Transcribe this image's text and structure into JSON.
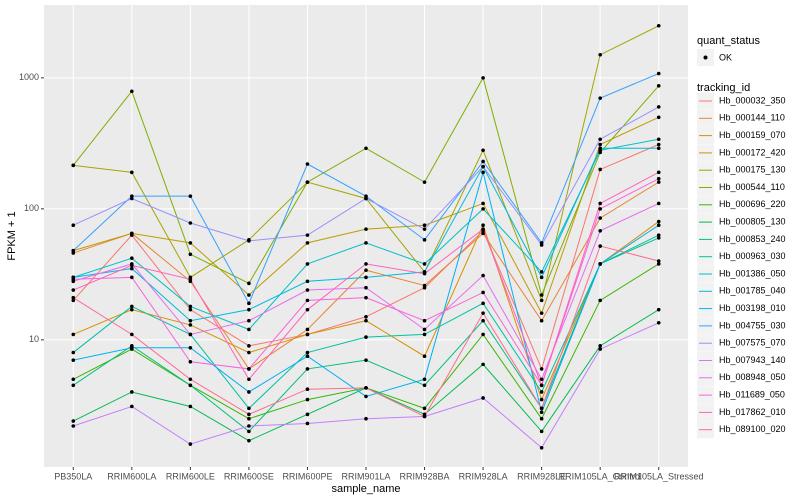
{
  "chart_data": {
    "type": "line",
    "log_y": true,
    "grid": true,
    "x_label": "sample_name",
    "y_label": "FPKM + 1",
    "point_legend_title": "quant_status",
    "point_legend_entry": "OK",
    "legend_title": "tracking_id",
    "categories": [
      "PB350LA",
      "RRIM600LA",
      "RRIM600LE",
      "RRIM600SE",
      "RRIM600PE",
      "RRIM901LA",
      "RRIM928BA",
      "RRIM928LA",
      "RRIM928LE",
      "RRIM105LA_Control",
      "RRIM105LA_Stressed"
    ],
    "ylim": [
      1.07,
      3600
    ],
    "yticks": [
      10,
      100,
      1000
    ],
    "series": [
      {
        "name": "Hb_000032_350",
        "color": "#F8766D",
        "values": [
          20,
          63,
          17,
          9,
          11,
          15,
          25,
          68,
          6,
          200,
          310
        ]
      },
      {
        "name": "Hb_000144_110",
        "color": "#EA8331",
        "values": [
          46,
          65,
          28,
          6,
          12,
          34,
          26,
          65,
          14,
          85,
          160
        ]
      },
      {
        "name": "Hb_000159_070",
        "color": "#D89000",
        "values": [
          11,
          17,
          13,
          8,
          11,
          14,
          7.5,
          75,
          3.5,
          38,
          80
        ]
      },
      {
        "name": "Hb_000172_420",
        "color": "#C09B00",
        "values": [
          48,
          65,
          55,
          22,
          55,
          70,
          75,
          110,
          16,
          310,
          500
        ]
      },
      {
        "name": "Hb_000175_130",
        "color": "#A3A500",
        "values": [
          215,
          190,
          30,
          58,
          160,
          120,
          33,
          280,
          20,
          1500,
          2500
        ]
      },
      {
        "name": "Hb_000544_110",
        "color": "#7CAE00",
        "values": [
          215,
          790,
          45,
          27,
          160,
          290,
          160,
          1000,
          22,
          270,
          870
        ]
      },
      {
        "name": "Hb_000696_220",
        "color": "#39B600",
        "values": [
          5,
          8.5,
          4.5,
          2.5,
          3.5,
          4.3,
          3,
          11,
          2.5,
          20,
          38
        ]
      },
      {
        "name": "Hb_000805_130",
        "color": "#00BB4E",
        "values": [
          2.4,
          4,
          3.1,
          1.7,
          2.7,
          4.3,
          2.7,
          6.5,
          2,
          9,
          17
        ]
      },
      {
        "name": "Hb_000853_240",
        "color": "#00BF7D",
        "values": [
          4.5,
          9,
          4.5,
          2,
          6,
          7,
          4.5,
          14,
          3,
          38,
          60
        ]
      },
      {
        "name": "Hb_000963_030",
        "color": "#00C1A3",
        "values": [
          8,
          18,
          11,
          3,
          8,
          10.5,
          11,
          19,
          4,
          38,
          63
        ]
      },
      {
        "name": "Hb_001386_050",
        "color": "#00BFC4",
        "values": [
          30,
          42,
          18,
          12,
          38,
          55,
          38,
          100,
          33,
          280,
          340
        ]
      },
      {
        "name": "Hb_001785_040",
        "color": "#00BAE0",
        "values": [
          30,
          35,
          14,
          17,
          28,
          30,
          33,
          210,
          30,
          290,
          290
        ]
      },
      {
        "name": "Hb_003198_010",
        "color": "#00B0F6",
        "values": [
          7,
          8.7,
          8.7,
          4,
          7.5,
          3.7,
          5,
          190,
          2.8,
          38,
          75
        ]
      },
      {
        "name": "Hb_004755_030",
        "color": "#35A2FF",
        "values": [
          48,
          125,
          125,
          19,
          220,
          125,
          58,
          230,
          55,
          700,
          1080
        ]
      },
      {
        "name": "Hb_007575_070",
        "color": "#9590FF",
        "values": [
          75,
          120,
          78,
          57,
          63,
          120,
          70,
          210,
          53,
          340,
          600
        ]
      },
      {
        "name": "Hb_007943_140",
        "color": "#C77CFF",
        "values": [
          2.2,
          3.1,
          1.6,
          2.2,
          2.3,
          2.5,
          2.6,
          3.6,
          1.5,
          8.5,
          13.5
        ]
      },
      {
        "name": "Hb_008948_050",
        "color": "#E76BF3",
        "values": [
          28,
          38,
          11,
          14,
          24,
          25,
          12,
          31,
          5,
          68,
          110
        ]
      },
      {
        "name": "Hb_011689_050",
        "color": "#FA62DB",
        "values": [
          29,
          30,
          6.8,
          6,
          20,
          21,
          14,
          23,
          4.5,
          100,
          170
        ]
      },
      {
        "name": "Hb_017862_010",
        "color": "#FF62BC",
        "values": [
          24,
          37,
          29,
          5,
          17,
          38,
          32,
          70,
          4.5,
          110,
          190
        ]
      },
      {
        "name": "Hb_089100_020",
        "color": "#FF6C91",
        "values": [
          21,
          11,
          5,
          2.7,
          4.2,
          4.3,
          2.6,
          16,
          3,
          52,
          40
        ]
      }
    ]
  }
}
